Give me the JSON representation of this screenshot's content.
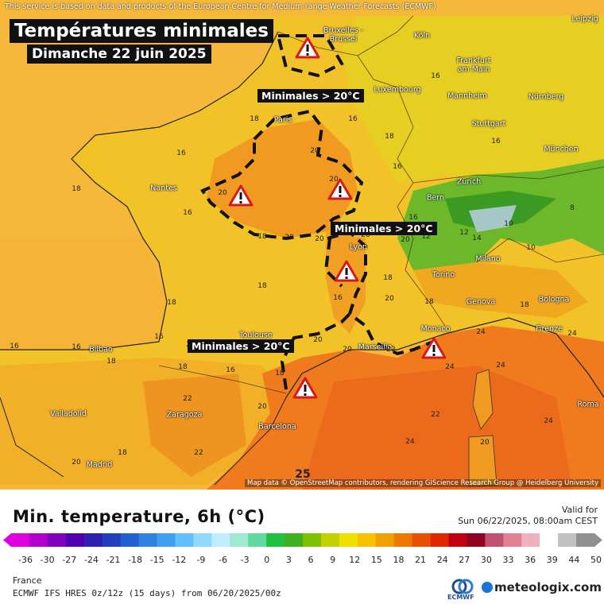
{
  "attribution_top": "This service is based on data and products of the European Centre for Medium-range Weather Forecasts (ECMWF)",
  "title": "Températures minimales",
  "subtitle": "Dimanche 22 juin 2025",
  "warning_labels": [
    "Minimales > 20°C",
    "Minimales > 20°C",
    "Minimales > 20°C"
  ],
  "cities": {
    "bruxelles": "Bruxelles -\nBrussel",
    "koln": "Köln",
    "leipzig": "Leipzig",
    "frankfurt": "Frankfurt\nam Main",
    "luxembourg": "Luxembourg",
    "mannheim": "Mannheim",
    "nurnberg": "Nürnberg",
    "paris": "Paris",
    "stuttgart": "Stuttgart",
    "munchen": "München",
    "nantes": "Nantes",
    "zurich": "Zürich",
    "bern": "Bern",
    "lyon": "Lyon",
    "milano": "Milano",
    "torino": "Torino",
    "genova": "Genova",
    "bologna": "Bologna",
    "firenze": "Firenze",
    "monaco": "Monaco",
    "marseille": "Marseille",
    "toulouse": "Toulouse",
    "bilbao": "Bilbao",
    "valladolid": "Valladolid",
    "zaragoza": "Zaragoza",
    "barcelona": "Barcelona",
    "roma": "Roma",
    "madrid": "Madrid"
  },
  "map_values": [
    "16",
    "18",
    "16",
    "18",
    "16",
    "20",
    "18",
    "16",
    "20",
    "18",
    "16",
    "18",
    "20",
    "18",
    "16",
    "20",
    "16",
    "18",
    "20",
    "20",
    "18",
    "18",
    "16",
    "14",
    "12",
    "10",
    "8",
    "20",
    "16",
    "18",
    "20",
    "22",
    "24",
    "16",
    "18",
    "20",
    "22",
    "24",
    "22",
    "20",
    "18",
    "16",
    "24",
    "24",
    "24",
    "25",
    "20",
    "22",
    "24",
    "20",
    "20",
    "18",
    "16",
    "12",
    "10",
    "16",
    "18",
    "20"
  ],
  "attribution_bottom": "Map data © OpenStreetMap contributors, rendering GIScience Research Group @ Heidelberg University",
  "legend": {
    "title": "Min. temperature, 6h (°C)",
    "valid_label": "Valid for",
    "valid_time": "Sun 06/22/2025, 08:00am CEST",
    "ticks": [
      "-36",
      "-30",
      "-27",
      "-24",
      "-21",
      "-18",
      "-15",
      "-12",
      "-9",
      "-6",
      "-3",
      "0",
      "3",
      "6",
      "9",
      "12",
      "15",
      "18",
      "21",
      "24",
      "27",
      "30",
      "33",
      "36",
      "39",
      "44",
      "50"
    ],
    "region": "France",
    "model": "ECMWF IFS HRES 0z/12z (15 days) from 06/20/2025/00z",
    "ecmwf_text": "ECMWF",
    "brand": "meteologix.com"
  },
  "colors": {
    "scale": [
      "#e000e0",
      "#b000d0",
      "#8000c0",
      "#5000b0",
      "#3020b0",
      "#2040c0",
      "#2060d0",
      "#3080e0",
      "#40a0f0",
      "#60c0ff",
      "#90d8ff",
      "#c0ecff",
      "#a0e8d0",
      "#60d8a0",
      "#20c040",
      "#40b020",
      "#80c000",
      "#c0d000",
      "#f0e000",
      "#f8c000",
      "#f0a000",
      "#f07800",
      "#e85000",
      "#e02800",
      "#c00010",
      "#900020",
      "#c05070",
      "#e08090",
      "#f0b0c0",
      "#ffffff",
      "#c0c0c0",
      "#909090"
    ]
  }
}
